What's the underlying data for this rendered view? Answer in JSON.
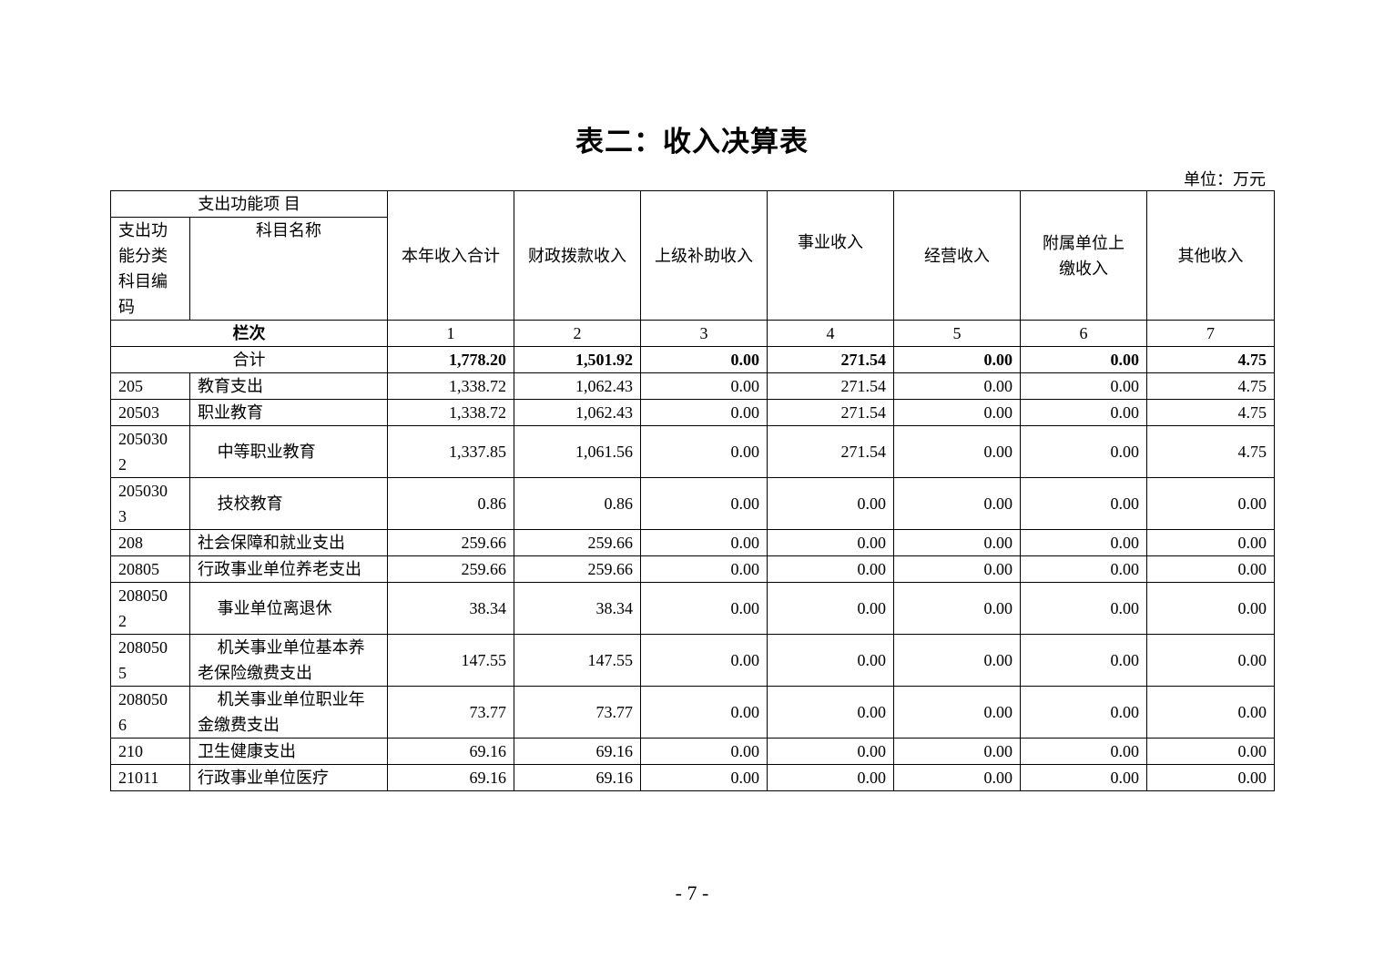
{
  "title": "表二：收入决算表",
  "unit": "单位：万元",
  "header": {
    "group": "支出功能项 目",
    "code": "支出功能分类科目编码",
    "name": "科目名称",
    "columns": [
      "本年收入合计",
      "财政拨款收入",
      "上级补助收入",
      "事业收入",
      "经营收入",
      "附属单位上缴收入",
      "其他收入"
    ],
    "index_label": "栏次",
    "index": [
      "1",
      "2",
      "3",
      "4",
      "5",
      "6",
      "7"
    ]
  },
  "total": {
    "label": "合计",
    "values": [
      "1,778.20",
      "1,501.92",
      "0.00",
      "271.54",
      "0.00",
      "0.00",
      "4.75"
    ]
  },
  "rows": [
    {
      "code": "205",
      "name": "教育支出",
      "level": 1,
      "values": [
        "1,338.72",
        "1,062.43",
        "0.00",
        "271.54",
        "0.00",
        "0.00",
        "4.75"
      ]
    },
    {
      "code": "20503",
      "name": "职业教育",
      "level": 2,
      "values": [
        "1,338.72",
        "1,062.43",
        "0.00",
        "271.54",
        "0.00",
        "0.00",
        "4.75"
      ]
    },
    {
      "code": "2050302",
      "name": "中等职业教育",
      "level": 3,
      "values": [
        "1,337.85",
        "1,061.56",
        "0.00",
        "271.54",
        "0.00",
        "0.00",
        "4.75"
      ]
    },
    {
      "code": "2050303",
      "name": "技校教育",
      "level": 3,
      "values": [
        "0.86",
        "0.86",
        "0.00",
        "0.00",
        "0.00",
        "0.00",
        "0.00"
      ]
    },
    {
      "code": "208",
      "name": "社会保障和就业支出",
      "level": 1,
      "values": [
        "259.66",
        "259.66",
        "0.00",
        "0.00",
        "0.00",
        "0.00",
        "0.00"
      ]
    },
    {
      "code": "20805",
      "name": "行政事业单位养老支出",
      "level": 2,
      "values": [
        "259.66",
        "259.66",
        "0.00",
        "0.00",
        "0.00",
        "0.00",
        "0.00"
      ]
    },
    {
      "code": "2080502",
      "name": "事业单位离退休",
      "level": 3,
      "values": [
        "38.34",
        "38.34",
        "0.00",
        "0.00",
        "0.00",
        "0.00",
        "0.00"
      ]
    },
    {
      "code": "2080505",
      "name": "机关事业单位基本养老保险缴费支出",
      "level": 3,
      "values": [
        "147.55",
        "147.55",
        "0.00",
        "0.00",
        "0.00",
        "0.00",
        "0.00"
      ]
    },
    {
      "code": "2080506",
      "name": "机关事业单位职业年金缴费支出",
      "level": 3,
      "values": [
        "73.77",
        "73.77",
        "0.00",
        "0.00",
        "0.00",
        "0.00",
        "0.00"
      ]
    },
    {
      "code": "210",
      "name": "卫生健康支出",
      "level": 1,
      "values": [
        "69.16",
        "69.16",
        "0.00",
        "0.00",
        "0.00",
        "0.00",
        "0.00"
      ]
    },
    {
      "code": "21011",
      "name": "行政事业单位医疗",
      "level": 2,
      "values": [
        "69.16",
        "69.16",
        "0.00",
        "0.00",
        "0.00",
        "0.00",
        "0.00"
      ]
    }
  ],
  "page_number": "- 7 -"
}
